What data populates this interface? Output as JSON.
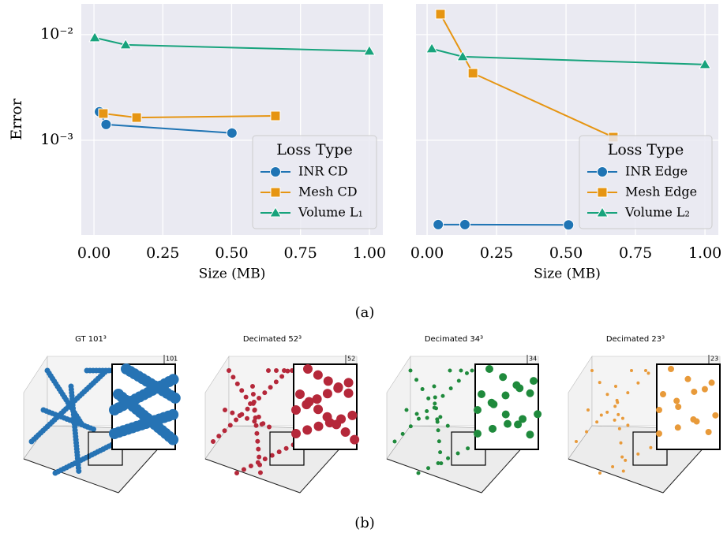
{
  "chart_data": [
    {
      "type": "line",
      "ylabel": "Error",
      "xlabel": "Size (MB)",
      "log_y": true,
      "grid": true,
      "legend_title": "Loss Type",
      "legend": "lower right",
      "xlim": [
        -0.046,
        1.049
      ],
      "ylim": [
        0.000127,
        0.0195
      ],
      "xticks": [
        {
          "value": 0,
          "label": "0.00"
        },
        {
          "value": 0.25,
          "label": "0.25"
        },
        {
          "value": 0.5,
          "label": "0.50"
        },
        {
          "value": 0.75,
          "label": "0.75"
        },
        {
          "value": 1,
          "label": "1.00"
        }
      ],
      "yticks": [
        {
          "value": 0.01,
          "label": "10⁻²"
        },
        {
          "value": 0.001,
          "label": "10⁻³"
        }
      ],
      "series": [
        {
          "name": "INR CD",
          "color": "#1f74b4",
          "marker": "circle",
          "x": [
            0.02,
            0.044,
            0.501
          ],
          "values": [
            0.00186,
            0.00141,
            0.00117
          ]
        },
        {
          "name": "Mesh CD",
          "color": "#e69512",
          "marker": "square",
          "x": [
            0.034,
            0.155,
            0.659
          ],
          "values": [
            0.00179,
            0.00164,
            0.0017
          ]
        },
        {
          "name": "Volume L₁",
          "color": "#17a37c",
          "marker": "triangle",
          "x": [
            0.003,
            0.115,
            1.0
          ],
          "values": [
            0.00934,
            0.008,
            0.00697
          ]
        }
      ]
    },
    {
      "type": "line",
      "xlabel": "Size (MB)",
      "log_y": true,
      "grid": true,
      "legend_title": "Loss Type",
      "legend": "lower right",
      "xlim": [
        -0.04,
        1.048
      ],
      "ylim": [
        0.000127,
        0.0195
      ],
      "xticks": [
        {
          "value": 0,
          "label": "0.00"
        },
        {
          "value": 0.25,
          "label": "0.25"
        },
        {
          "value": 0.5,
          "label": "0.50"
        },
        {
          "value": 0.75,
          "label": "0.75"
        },
        {
          "value": 1,
          "label": "1.00"
        }
      ],
      "yticks": [
        0.01,
        0.001
      ],
      "series": [
        {
          "name": "INR Edge",
          "color": "#1f74b4",
          "marker": "circle",
          "x": [
            0.04,
            0.136,
            0.509
          ],
          "values": [
            0.000159,
            0.000159,
            0.000158
          ]
        },
        {
          "name": "Mesh Edge",
          "color": "#e69512",
          "marker": "square",
          "x": [
            0.048,
            0.165,
            0.67
          ],
          "values": [
            0.0156,
            0.00431,
            0.00107
          ]
        },
        {
          "name": "Volume L₂",
          "color": "#17a37c",
          "marker": "triangle",
          "x": [
            0.017,
            0.128,
            1.0
          ],
          "values": [
            0.00734,
            0.00618,
            0.00521
          ]
        }
      ]
    }
  ],
  "caption_a": "(a)",
  "figure_b": {
    "panels": [
      {
        "title": "GT 101³",
        "corner_label": "101",
        "color": "#2673b4"
      },
      {
        "title": "Decimated 52³",
        "corner_label": "52",
        "color": "#b5283a"
      },
      {
        "title": "Decimated 34³",
        "corner_label": "34",
        "color": "#1f8a3c"
      },
      {
        "title": "Decimated 23³",
        "corner_label": "23",
        "color": "#e89a3a"
      }
    ]
  },
  "caption_b": "(b)"
}
